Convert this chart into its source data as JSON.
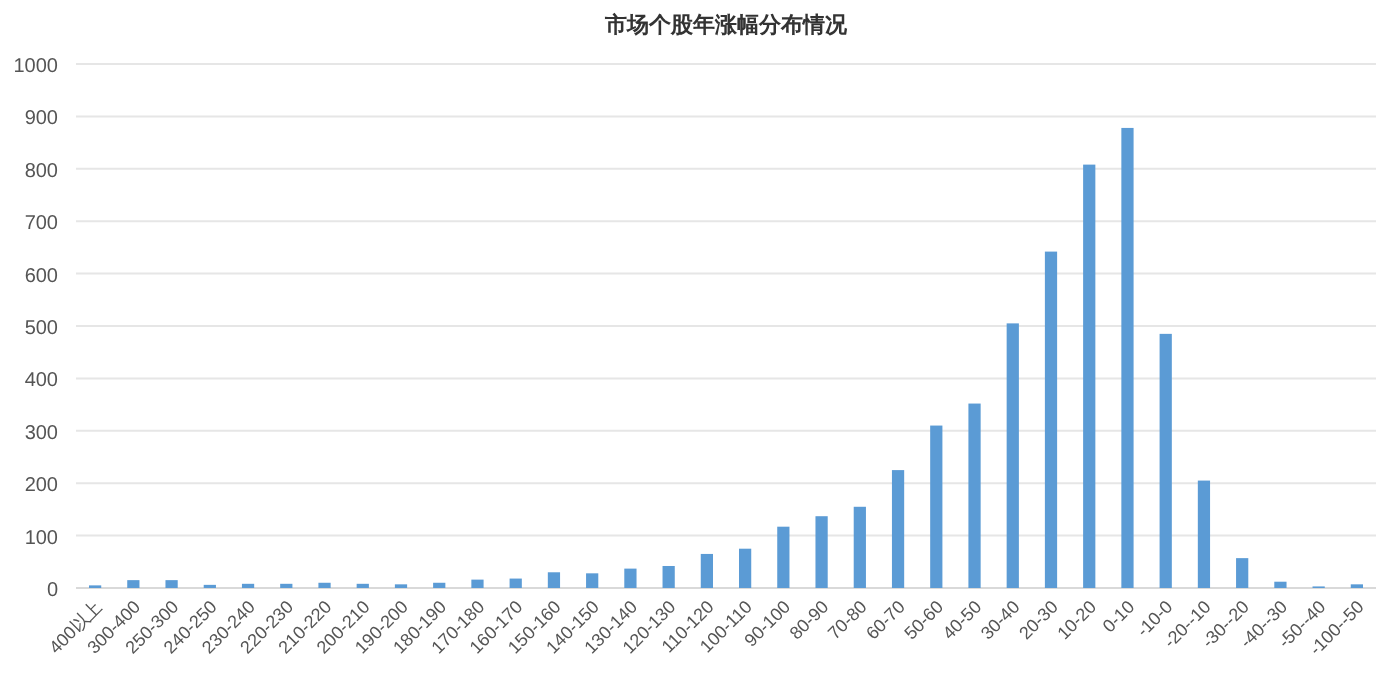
{
  "chart_data": {
    "type": "bar",
    "title": "市场个股年涨幅分布情况",
    "categories": [
      "400以上",
      "300-400",
      "250-300",
      "240-250",
      "230-240",
      "220-230",
      "210-220",
      "200-210",
      "190-200",
      "180-190",
      "170-180",
      "160-170",
      "150-160",
      "140-150",
      "130-140",
      "120-130",
      "110-120",
      "100-110",
      "90-100",
      "80-90",
      "70-80",
      "60-70",
      "50-60",
      "40-50",
      "30-40",
      "20-30",
      "10-20",
      "0-10",
      "-10-0",
      "-20--10",
      "-30--20",
      "-40--30",
      "-50--40",
      "-100--50"
    ],
    "values": [
      5,
      15,
      15,
      6,
      8,
      8,
      10,
      8,
      7,
      10,
      16,
      18,
      30,
      28,
      37,
      42,
      65,
      75,
      117,
      137,
      155,
      225,
      310,
      352,
      505,
      642,
      808,
      878,
      485,
      205,
      57,
      12,
      3,
      7
    ],
    "color": "#5b9bd5",
    "ylim": [
      0,
      1000
    ],
    "yticks": [
      0,
      100,
      200,
      300,
      400,
      500,
      600,
      700,
      800,
      900,
      1000
    ],
    "grid": "y"
  }
}
